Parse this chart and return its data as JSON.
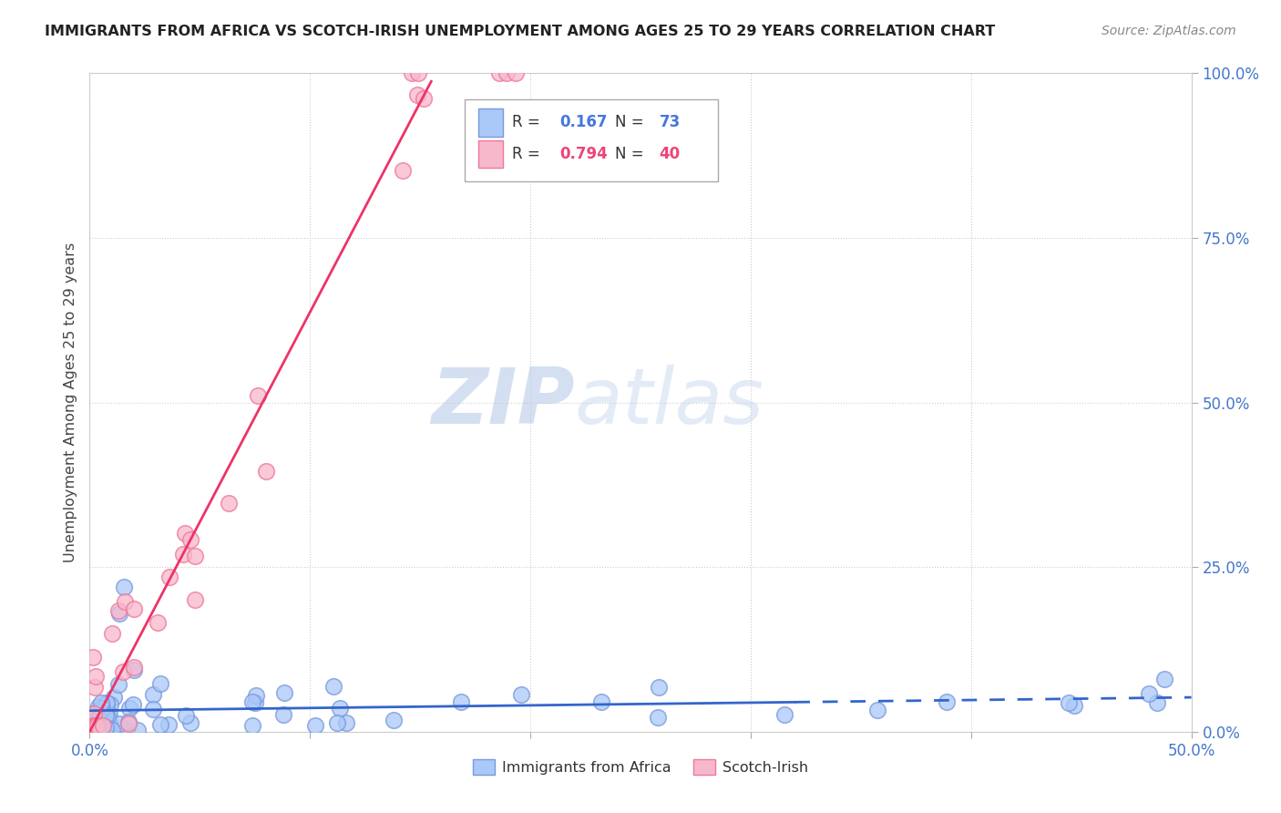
{
  "title": "IMMIGRANTS FROM AFRICA VS SCOTCH-IRISH UNEMPLOYMENT AMONG AGES 25 TO 29 YEARS CORRELATION CHART",
  "source": "Source: ZipAtlas.com",
  "ylabel": "Unemployment Among Ages 25 to 29 years",
  "xlim": [
    0.0,
    0.5
  ],
  "ylim": [
    0.0,
    1.0
  ],
  "xticks": [
    0.0,
    0.1,
    0.2,
    0.3,
    0.4,
    0.5
  ],
  "xtick_labels": [
    "0.0%",
    "",
    "",
    "",
    "",
    "50.0%"
  ],
  "yticks": [
    0.0,
    0.25,
    0.5,
    0.75,
    1.0
  ],
  "ytick_labels": [
    "0.0%",
    "25.0%",
    "50.0%",
    "75.0%",
    "100.0%"
  ],
  "series1_color": "#aac8f8",
  "series1_edge": "#7799dd",
  "series2_color": "#f8b8cc",
  "series2_edge": "#ee7799",
  "line1_color": "#3366cc",
  "line2_color": "#ee3366",
  "legend_R1": "0.167",
  "legend_N1": "73",
  "legend_R2": "0.794",
  "legend_N2": "40",
  "series1_label": "Immigrants from Africa",
  "series2_label": "Scotch-Irish",
  "watermark_zip": "ZIP",
  "watermark_atlas": "atlas",
  "background_color": "#ffffff",
  "grid_color": "#cccccc",
  "title_color": "#222222",
  "source_color": "#888888",
  "axis_label_color": "#4477cc",
  "ylabel_color": "#444444"
}
